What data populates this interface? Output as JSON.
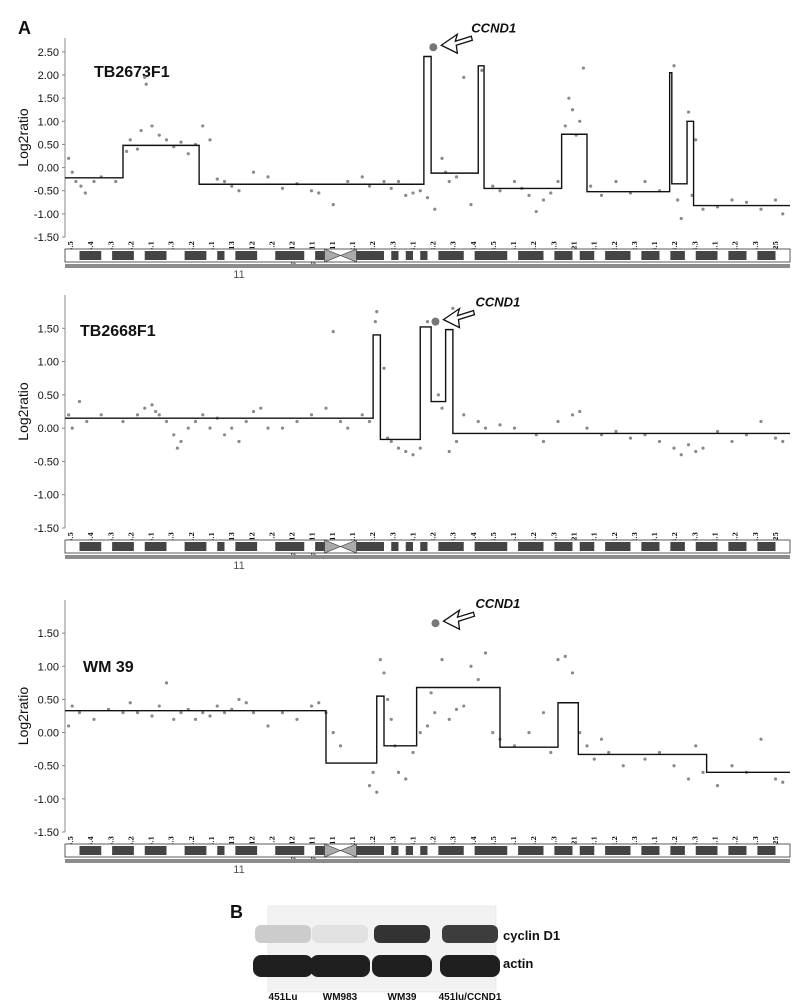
{
  "chart_data": [
    {
      "type": "scatter",
      "panel": "A",
      "sample": "TB2673F1",
      "ylabel": "Log2ratio",
      "yticks": [
        "2.50",
        "2.00",
        "1.50",
        "1.00",
        "0.50",
        "0.00",
        "-0.50",
        "-1.00",
        "-1.50"
      ],
      "ylim": [
        -1.5,
        2.8
      ],
      "gene_label": "CCND1",
      "gene_point": {
        "x": 0.508,
        "y": 2.6
      },
      "chromosome_label": "11",
      "bands": [
        "p15.5",
        "p15.4",
        "p15.3",
        "p15.2",
        "p15.1",
        "p14.3",
        "p14.2",
        "p14.1",
        "p13",
        "p12",
        "p11.2",
        "p11.12",
        "p11.11",
        "q11",
        "q12.1",
        "q12.2",
        "q12.3",
        "q13.1",
        "q13.2",
        "q13.3",
        "q13.4",
        "q13.5",
        "q14.1",
        "q14.2",
        "q14.3",
        "q21",
        "q22.1",
        "q22.2",
        "q22.3",
        "q23.1",
        "q23.2",
        "q23.3",
        "q24.1",
        "q24.2",
        "q24.3",
        "q25"
      ],
      "segments": [
        [
          0.0,
          -0.22
        ],
        [
          0.08,
          0.48
        ],
        [
          0.185,
          -0.36
        ],
        [
          0.495,
          2.4
        ],
        [
          0.505,
          -0.12
        ],
        [
          0.57,
          2.2
        ],
        [
          0.578,
          -0.45
        ],
        [
          0.685,
          0.72
        ],
        [
          0.72,
          -0.52
        ],
        [
          0.834,
          2.05
        ],
        [
          0.837,
          -0.35
        ],
        [
          0.858,
          1.0
        ],
        [
          0.867,
          -0.82
        ],
        [
          1.0,
          -0.82
        ]
      ],
      "points": [
        [
          0.005,
          0.2
        ],
        [
          0.01,
          -0.1
        ],
        [
          0.015,
          -0.3
        ],
        [
          0.022,
          -0.4
        ],
        [
          0.028,
          -0.55
        ],
        [
          0.04,
          -0.3
        ],
        [
          0.05,
          -0.2
        ],
        [
          0.07,
          -0.3
        ],
        [
          0.085,
          0.35
        ],
        [
          0.09,
          0.6
        ],
        [
          0.1,
          0.4
        ],
        [
          0.105,
          0.8
        ],
        [
          0.11,
          1.95
        ],
        [
          0.112,
          1.8
        ],
        [
          0.12,
          0.9
        ],
        [
          0.13,
          0.7
        ],
        [
          0.14,
          0.6
        ],
        [
          0.15,
          0.45
        ],
        [
          0.16,
          0.55
        ],
        [
          0.17,
          0.3
        ],
        [
          0.18,
          0.5
        ],
        [
          0.19,
          0.9
        ],
        [
          0.2,
          0.6
        ],
        [
          0.21,
          -0.25
        ],
        [
          0.22,
          -0.3
        ],
        [
          0.23,
          -0.4
        ],
        [
          0.24,
          -0.5
        ],
        [
          0.26,
          -0.1
        ],
        [
          0.28,
          -0.2
        ],
        [
          0.3,
          -0.45
        ],
        [
          0.32,
          -0.35
        ],
        [
          0.34,
          -0.5
        ],
        [
          0.35,
          -0.55
        ],
        [
          0.37,
          -0.8
        ],
        [
          0.39,
          -0.3
        ],
        [
          0.41,
          -0.2
        ],
        [
          0.42,
          -0.4
        ],
        [
          0.44,
          -0.3
        ],
        [
          0.45,
          -0.45
        ],
        [
          0.46,
          -0.3
        ],
        [
          0.47,
          -0.6
        ],
        [
          0.48,
          -0.55
        ],
        [
          0.49,
          -0.5
        ],
        [
          0.5,
          -0.65
        ],
        [
          0.51,
          -0.9
        ],
        [
          0.52,
          0.2
        ],
        [
          0.525,
          -0.1
        ],
        [
          0.53,
          -0.3
        ],
        [
          0.54,
          -0.2
        ],
        [
          0.55,
          1.95
        ],
        [
          0.56,
          -0.8
        ],
        [
          0.575,
          2.1
        ],
        [
          0.59,
          -0.4
        ],
        [
          0.6,
          -0.5
        ],
        [
          0.62,
          -0.3
        ],
        [
          0.63,
          -0.45
        ],
        [
          0.64,
          -0.6
        ],
        [
          0.65,
          -0.95
        ],
        [
          0.66,
          -0.7
        ],
        [
          0.67,
          -0.55
        ],
        [
          0.68,
          -0.3
        ],
        [
          0.69,
          0.9
        ],
        [
          0.695,
          1.5
        ],
        [
          0.7,
          1.25
        ],
        [
          0.705,
          0.7
        ],
        [
          0.71,
          1.0
        ],
        [
          0.715,
          2.15
        ],
        [
          0.725,
          -0.4
        ],
        [
          0.74,
          -0.6
        ],
        [
          0.76,
          -0.3
        ],
        [
          0.78,
          -0.55
        ],
        [
          0.8,
          -0.3
        ],
        [
          0.82,
          -0.5
        ],
        [
          0.84,
          2.2
        ],
        [
          0.845,
          -0.7
        ],
        [
          0.85,
          -1.1
        ],
        [
          0.86,
          1.2
        ],
        [
          0.865,
          -0.6
        ],
        [
          0.87,
          0.6
        ],
        [
          0.88,
          -0.9
        ],
        [
          0.9,
          -0.85
        ],
        [
          0.92,
          -0.7
        ],
        [
          0.94,
          -0.75
        ],
        [
          0.96,
          -0.9
        ],
        [
          0.98,
          -0.7
        ],
        [
          0.99,
          -1.0
        ]
      ]
    },
    {
      "type": "scatter",
      "panel": "A",
      "sample": "TB2668F1",
      "ylabel": "Log2ratio",
      "yticks": [
        "1.50",
        "1.00",
        "0.50",
        "0.00",
        "-0.50",
        "-1.00",
        "-1.50"
      ],
      "ylim": [
        -1.5,
        2.0
      ],
      "gene_label": "CCND1",
      "gene_point": {
        "x": 0.511,
        "y": 1.6
      },
      "chromosome_label": "11",
      "bands": [
        "p15.5",
        "p15.4",
        "p15.3",
        "p15.2",
        "p15.1",
        "p14.3",
        "p14.2",
        "p14.1",
        "p13",
        "p12",
        "p11.2",
        "p11.12",
        "p11.11",
        "q11",
        "q12.1",
        "q12.2",
        "q12.3",
        "q13.1",
        "q13.2",
        "q13.3",
        "q13.4",
        "q13.5",
        "q14.1",
        "q14.2",
        "q14.3",
        "q21",
        "q22.1",
        "q22.2",
        "q22.3",
        "q23.1",
        "q23.2",
        "q23.3",
        "q24.1",
        "q24.2",
        "q24.3",
        "q25"
      ],
      "segments": [
        [
          0.0,
          0.15
        ],
        [
          0.425,
          1.4
        ],
        [
          0.435,
          -0.17
        ],
        [
          0.49,
          1.52
        ],
        [
          0.505,
          0.4
        ],
        [
          0.525,
          1.48
        ],
        [
          0.535,
          -0.08
        ],
        [
          1.0,
          -0.08
        ]
      ],
      "points": [
        [
          0.005,
          0.2
        ],
        [
          0.01,
          0.0
        ],
        [
          0.02,
          0.4
        ],
        [
          0.03,
          0.1
        ],
        [
          0.05,
          0.2
        ],
        [
          0.08,
          0.1
        ],
        [
          0.1,
          0.2
        ],
        [
          0.11,
          0.3
        ],
        [
          0.12,
          0.35
        ],
        [
          0.125,
          0.25
        ],
        [
          0.13,
          0.2
        ],
        [
          0.14,
          0.1
        ],
        [
          0.15,
          -0.1
        ],
        [
          0.155,
          -0.3
        ],
        [
          0.16,
          -0.2
        ],
        [
          0.17,
          0.0
        ],
        [
          0.18,
          0.1
        ],
        [
          0.19,
          0.2
        ],
        [
          0.2,
          0.0
        ],
        [
          0.21,
          0.15
        ],
        [
          0.22,
          -0.1
        ],
        [
          0.23,
          0.0
        ],
        [
          0.24,
          -0.2
        ],
        [
          0.25,
          0.1
        ],
        [
          0.26,
          0.25
        ],
        [
          0.27,
          0.3
        ],
        [
          0.28,
          0.0
        ],
        [
          0.3,
          0.0
        ],
        [
          0.32,
          0.1
        ],
        [
          0.34,
          0.2
        ],
        [
          0.36,
          0.3
        ],
        [
          0.37,
          1.45
        ],
        [
          0.38,
          0.1
        ],
        [
          0.39,
          0.0
        ],
        [
          0.41,
          0.2
        ],
        [
          0.42,
          0.1
        ],
        [
          0.428,
          1.6
        ],
        [
          0.43,
          1.75
        ],
        [
          0.44,
          0.9
        ],
        [
          0.445,
          -0.15
        ],
        [
          0.45,
          -0.2
        ],
        [
          0.46,
          -0.3
        ],
        [
          0.47,
          -0.35
        ],
        [
          0.48,
          -0.4
        ],
        [
          0.49,
          -0.3
        ],
        [
          0.5,
          1.6
        ],
        [
          0.508,
          1.6
        ],
        [
          0.515,
          0.5
        ],
        [
          0.52,
          0.3
        ],
        [
          0.53,
          -0.35
        ],
        [
          0.535,
          1.8
        ],
        [
          0.54,
          -0.2
        ],
        [
          0.55,
          0.2
        ],
        [
          0.57,
          0.1
        ],
        [
          0.58,
          0.0
        ],
        [
          0.6,
          0.05
        ],
        [
          0.62,
          0.0
        ],
        [
          0.65,
          -0.1
        ],
        [
          0.66,
          -0.2
        ],
        [
          0.68,
          0.1
        ],
        [
          0.7,
          0.2
        ],
        [
          0.71,
          0.25
        ],
        [
          0.72,
          0.0
        ],
        [
          0.74,
          -0.1
        ],
        [
          0.76,
          -0.05
        ],
        [
          0.78,
          -0.15
        ],
        [
          0.8,
          -0.1
        ],
        [
          0.82,
          -0.2
        ],
        [
          0.84,
          -0.3
        ],
        [
          0.85,
          -0.4
        ],
        [
          0.86,
          -0.25
        ],
        [
          0.87,
          -0.35
        ],
        [
          0.88,
          -0.3
        ],
        [
          0.9,
          -0.05
        ],
        [
          0.92,
          -0.2
        ],
        [
          0.94,
          -0.1
        ],
        [
          0.96,
          0.1
        ],
        [
          0.98,
          -0.15
        ],
        [
          0.99,
          -0.2
        ]
      ]
    },
    {
      "type": "scatter",
      "panel": "A",
      "sample": "WM 39",
      "ylabel": "Log2ratio",
      "yticks": [
        "1.50",
        "1.00",
        "0.50",
        "0.00",
        "-0.50",
        "-1.00",
        "-1.50"
      ],
      "ylim": [
        -1.5,
        2.0
      ],
      "gene_label": "CCND1",
      "gene_point": {
        "x": 0.511,
        "y": 1.65
      },
      "chromosome_label": "11",
      "bands": [
        "p15.5",
        "p15.4",
        "p15.3",
        "p15.2",
        "p15.1",
        "p14.3",
        "p14.2",
        "p14.1",
        "p13",
        "p12",
        "p11.2",
        "p11.12",
        "p11.11",
        "q11",
        "q12.1",
        "q12.2",
        "q12.3",
        "q13.1",
        "q13.2",
        "q13.3",
        "q13.4",
        "q13.5",
        "q14.1",
        "q14.2",
        "q14.3",
        "q21",
        "q22.1",
        "q22.2",
        "q22.3",
        "q23.1",
        "q23.2",
        "q23.3",
        "q24.1",
        "q24.2",
        "q24.3",
        "q25"
      ],
      "segments": [
        [
          0.0,
          0.33
        ],
        [
          0.36,
          -0.46
        ],
        [
          0.43,
          0.55
        ],
        [
          0.44,
          -0.2
        ],
        [
          0.485,
          0.68
        ],
        [
          0.6,
          -0.22
        ],
        [
          0.68,
          0.45
        ],
        [
          0.708,
          -0.33
        ],
        [
          0.885,
          -0.6
        ],
        [
          1.0,
          -0.6
        ]
      ],
      "points": [
        [
          0.005,
          0.1
        ],
        [
          0.01,
          0.4
        ],
        [
          0.02,
          0.3
        ],
        [
          0.04,
          0.2
        ],
        [
          0.06,
          0.35
        ],
        [
          0.08,
          0.3
        ],
        [
          0.09,
          0.45
        ],
        [
          0.1,
          0.3
        ],
        [
          0.12,
          0.25
        ],
        [
          0.13,
          0.4
        ],
        [
          0.14,
          0.75
        ],
        [
          0.15,
          0.2
        ],
        [
          0.16,
          0.3
        ],
        [
          0.17,
          0.35
        ],
        [
          0.18,
          0.2
        ],
        [
          0.19,
          0.3
        ],
        [
          0.2,
          0.25
        ],
        [
          0.21,
          0.4
        ],
        [
          0.22,
          0.3
        ],
        [
          0.23,
          0.35
        ],
        [
          0.24,
          0.5
        ],
        [
          0.25,
          0.45
        ],
        [
          0.26,
          0.3
        ],
        [
          0.28,
          0.1
        ],
        [
          0.3,
          0.3
        ],
        [
          0.32,
          0.2
        ],
        [
          0.34,
          0.4
        ],
        [
          0.35,
          0.45
        ],
        [
          0.36,
          0.3
        ],
        [
          0.37,
          0.0
        ],
        [
          0.38,
          -0.2
        ],
        [
          0.42,
          -0.8
        ],
        [
          0.425,
          -0.6
        ],
        [
          0.43,
          -0.9
        ],
        [
          0.435,
          1.1
        ],
        [
          0.44,
          0.9
        ],
        [
          0.445,
          0.5
        ],
        [
          0.45,
          0.2
        ],
        [
          0.455,
          -0.2
        ],
        [
          0.46,
          -0.6
        ],
        [
          0.47,
          -0.7
        ],
        [
          0.48,
          -0.3
        ],
        [
          0.49,
          0.0
        ],
        [
          0.5,
          0.1
        ],
        [
          0.505,
          0.6
        ],
        [
          0.51,
          0.3
        ],
        [
          0.52,
          1.1
        ],
        [
          0.53,
          0.2
        ],
        [
          0.54,
          0.35
        ],
        [
          0.55,
          0.4
        ],
        [
          0.56,
          1.0
        ],
        [
          0.57,
          0.8
        ],
        [
          0.58,
          1.2
        ],
        [
          0.59,
          0.0
        ],
        [
          0.6,
          -0.1
        ],
        [
          0.62,
          -0.2
        ],
        [
          0.64,
          0.0
        ],
        [
          0.66,
          0.3
        ],
        [
          0.67,
          -0.3
        ],
        [
          0.68,
          1.1
        ],
        [
          0.69,
          1.15
        ],
        [
          0.7,
          0.9
        ],
        [
          0.71,
          0.0
        ],
        [
          0.72,
          -0.2
        ],
        [
          0.73,
          -0.4
        ],
        [
          0.74,
          -0.1
        ],
        [
          0.75,
          -0.3
        ],
        [
          0.77,
          -0.5
        ],
        [
          0.8,
          -0.4
        ],
        [
          0.82,
          -0.3
        ],
        [
          0.84,
          -0.5
        ],
        [
          0.86,
          -0.7
        ],
        [
          0.87,
          -0.2
        ],
        [
          0.88,
          -0.6
        ],
        [
          0.9,
          -0.8
        ],
        [
          0.92,
          -0.5
        ],
        [
          0.94,
          -0.6
        ],
        [
          0.96,
          -0.1
        ],
        [
          0.98,
          -0.7
        ],
        [
          0.99,
          -0.75
        ]
      ]
    }
  ],
  "panel_b": {
    "letter": "B",
    "blot_labels": [
      "cyclin D1",
      "actin"
    ],
    "lanes": [
      "451Lu",
      "WM983",
      "WM39",
      "451lu/CCND1"
    ],
    "cyclin_intensity": [
      0.15,
      0.05,
      0.9,
      0.85
    ],
    "actin_intensity": [
      0.95,
      0.95,
      0.95,
      0.95
    ]
  },
  "panel_a_letter": "A"
}
